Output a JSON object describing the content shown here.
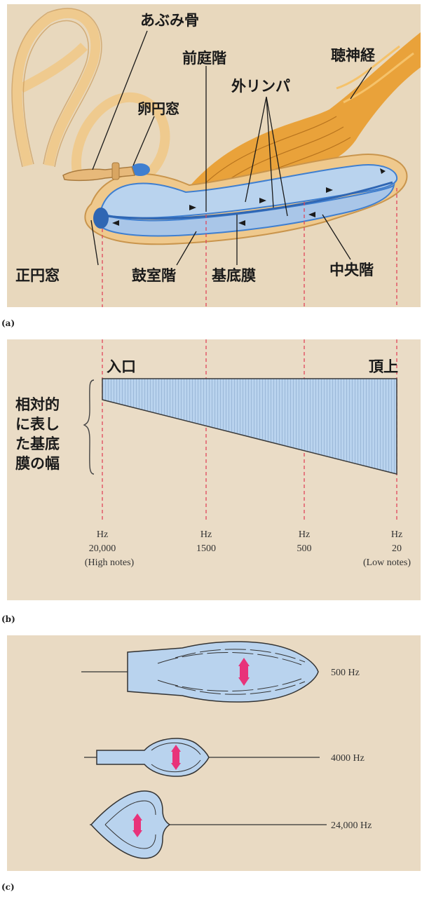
{
  "panel_a": {
    "tag": "(a)",
    "labels": {
      "stapes": "あぶみ骨",
      "scala_vestibuli": "前庭階",
      "auditory_nerve": "聴神経",
      "perilymph": "外リンパ",
      "oval_window": "卵円窓",
      "round_window": "正円窓",
      "scala_tympani": "鼓室階",
      "basilar_membrane": "基底膜",
      "cochlear_duct": "中央階"
    }
  },
  "panel_b": {
    "tag": "(b)",
    "base_label": "入口",
    "apex_label": "頂上",
    "side_label": [
      "相対的",
      "に表し",
      "た基底",
      "膜の幅"
    ],
    "frequencies": [
      {
        "unit": "Hz",
        "value": "20,000",
        "note": "(High notes)"
      },
      {
        "unit": "Hz",
        "value": "1500",
        "note": ""
      },
      {
        "unit": "Hz",
        "value": "500",
        "note": ""
      },
      {
        "unit": "Hz",
        "value": "20",
        "note": "(Low notes)"
      }
    ]
  },
  "panel_c": {
    "tag": "(c)",
    "waves": [
      {
        "label": "500 Hz"
      },
      {
        "label": "4000 Hz"
      },
      {
        "label": "24,000 Hz"
      }
    ]
  },
  "colors": {
    "fluid_blue": "#b9d3ee",
    "membrane_blue": "#3f7fd0",
    "nerve_orange": "#e9a23a",
    "bone_tan": "#efc98d",
    "guide_red": "#e0455a",
    "arrow_magenta": "#e8337a"
  }
}
